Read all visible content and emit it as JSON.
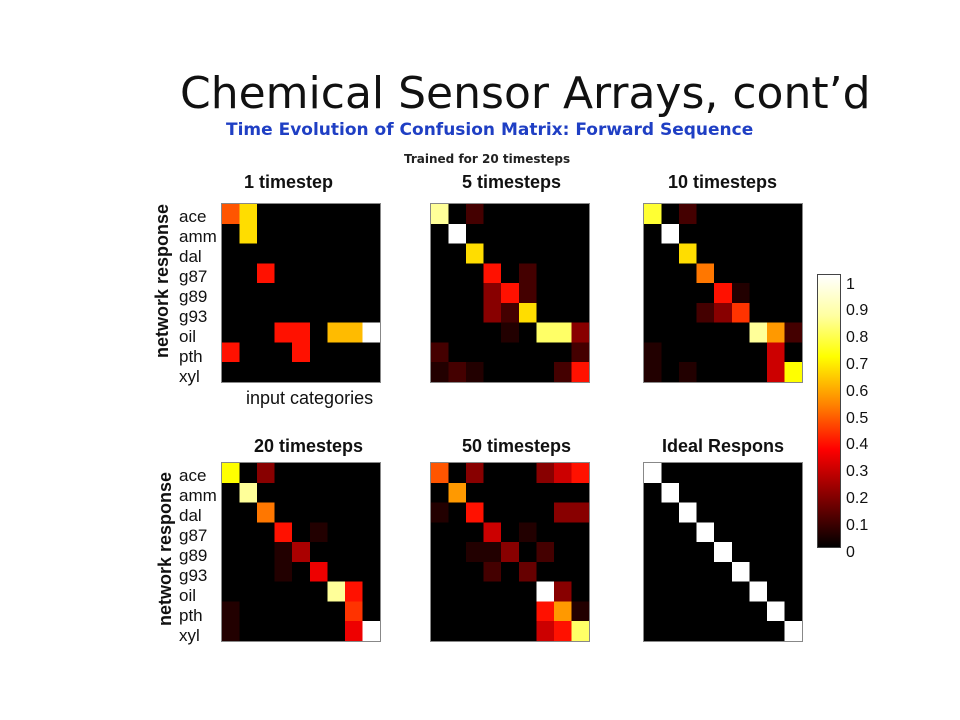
{
  "slide_title": "Chemical Sensor Arrays, cont’d",
  "subtitle": "Time Evolution of Confusion Matrix: Forward Sequence",
  "note": "Trained for 20 timesteps",
  "ylabel": "network response",
  "xlabel": "input categories",
  "chart_data": [
    {
      "type": "heatmap",
      "title": "1 timestep",
      "rows": [
        "ace",
        "amm",
        "dal",
        "g87",
        "g89",
        "g93",
        "oil",
        "pth",
        "xyl"
      ],
      "values": [
        [
          0.5,
          0.7,
          0,
          0,
          0,
          0,
          0,
          0,
          0
        ],
        [
          0,
          0.7,
          0,
          0,
          0,
          0,
          0,
          0,
          0
        ],
        [
          0,
          0,
          0,
          0,
          0,
          0,
          0,
          0,
          0
        ],
        [
          0,
          0,
          0.4,
          0,
          0,
          0,
          0,
          0,
          0
        ],
        [
          0,
          0,
          0,
          0,
          0,
          0,
          0,
          0,
          0
        ],
        [
          0,
          0,
          0,
          0,
          0,
          0,
          0,
          0,
          0
        ],
        [
          0,
          0,
          0,
          0.4,
          0.4,
          0,
          0.65,
          0.65,
          1.0
        ],
        [
          0.4,
          0,
          0,
          0,
          0.4,
          0,
          0,
          0,
          0
        ],
        [
          0,
          0,
          0,
          0,
          0,
          0,
          0,
          0,
          0
        ]
      ]
    },
    {
      "type": "heatmap",
      "title": "5 timesteps",
      "values": [
        [
          0.9,
          0,
          0.1,
          0,
          0,
          0,
          0,
          0,
          0
        ],
        [
          0,
          1.0,
          0,
          0,
          0,
          0,
          0,
          0,
          0
        ],
        [
          0,
          0,
          0.7,
          0,
          0,
          0,
          0,
          0,
          0
        ],
        [
          0,
          0,
          0,
          0.4,
          0,
          0.1,
          0,
          0,
          0
        ],
        [
          0,
          0,
          0,
          0.2,
          0.4,
          0.1,
          0,
          0,
          0
        ],
        [
          0,
          0,
          0,
          0.2,
          0.1,
          0.7,
          0,
          0,
          0
        ],
        [
          0,
          0,
          0,
          0,
          0.05,
          0,
          0.85,
          0.85,
          0.2
        ],
        [
          0.1,
          0,
          0,
          0,
          0,
          0,
          0,
          0,
          0.1
        ],
        [
          0.05,
          0.1,
          0.05,
          0,
          0,
          0,
          0,
          0.1,
          0.4
        ]
      ]
    },
    {
      "type": "heatmap",
      "title": "10 timesteps",
      "values": [
        [
          0.8,
          0,
          0.1,
          0,
          0,
          0,
          0,
          0,
          0
        ],
        [
          0,
          1.0,
          0,
          0,
          0,
          0,
          0,
          0,
          0
        ],
        [
          0,
          0,
          0.7,
          0,
          0,
          0,
          0,
          0,
          0
        ],
        [
          0,
          0,
          0,
          0.55,
          0,
          0,
          0,
          0,
          0
        ],
        [
          0,
          0,
          0,
          0,
          0.4,
          0.05,
          0,
          0,
          0
        ],
        [
          0,
          0,
          0,
          0.1,
          0.2,
          0.45,
          0,
          0,
          0
        ],
        [
          0,
          0,
          0,
          0,
          0,
          0,
          0.9,
          0.6,
          0.1
        ],
        [
          0.05,
          0,
          0,
          0,
          0,
          0,
          0,
          0.3,
          0
        ],
        [
          0.05,
          0,
          0.05,
          0,
          0,
          0,
          0,
          0.3,
          0.75
        ]
      ]
    },
    {
      "type": "heatmap",
      "title": "20 timesteps",
      "values": [
        [
          0.75,
          0,
          0.2,
          0,
          0,
          0,
          0,
          0,
          0
        ],
        [
          0,
          0.9,
          0,
          0,
          0,
          0,
          0,
          0,
          0
        ],
        [
          0,
          0,
          0.55,
          0,
          0,
          0,
          0,
          0,
          0
        ],
        [
          0,
          0,
          0,
          0.4,
          0,
          0.05,
          0,
          0,
          0
        ],
        [
          0,
          0,
          0,
          0.05,
          0.25,
          0,
          0,
          0,
          0
        ],
        [
          0,
          0,
          0,
          0.05,
          0,
          0.35,
          0,
          0,
          0
        ],
        [
          0,
          0,
          0,
          0,
          0,
          0,
          0.9,
          0.4,
          0
        ],
        [
          0.05,
          0,
          0,
          0,
          0,
          0,
          0,
          0.45,
          0
        ],
        [
          0.05,
          0,
          0,
          0,
          0,
          0,
          0,
          0.35,
          1.0
        ]
      ]
    },
    {
      "type": "heatmap",
      "title": "50 timesteps",
      "values": [
        [
          0.5,
          0,
          0.2,
          0,
          0,
          0,
          0.2,
          0.3,
          0.4
        ],
        [
          0,
          0.6,
          0,
          0,
          0,
          0,
          0,
          0,
          0
        ],
        [
          0.05,
          0,
          0.4,
          0,
          0,
          0,
          0,
          0.2,
          0.2
        ],
        [
          0,
          0,
          0,
          0.3,
          0,
          0.05,
          0,
          0,
          0
        ],
        [
          0,
          0,
          0.05,
          0.05,
          0.2,
          0,
          0.1,
          0,
          0
        ],
        [
          0,
          0,
          0,
          0.1,
          0,
          0.15,
          0,
          0,
          0
        ],
        [
          0,
          0,
          0,
          0,
          0,
          0,
          1.0,
          0.2,
          0
        ],
        [
          0,
          0,
          0,
          0,
          0,
          0,
          0.4,
          0.6,
          0.05
        ],
        [
          0,
          0,
          0,
          0,
          0,
          0,
          0.3,
          0.4,
          0.85
        ]
      ]
    },
    {
      "type": "heatmap",
      "title": "Ideal Respons",
      "values": [
        [
          1,
          0,
          0,
          0,
          0,
          0,
          0,
          0,
          0
        ],
        [
          0,
          1,
          0,
          0,
          0,
          0,
          0,
          0,
          0
        ],
        [
          0,
          0,
          1,
          0,
          0,
          0,
          0,
          0,
          0
        ],
        [
          0,
          0,
          0,
          1,
          0,
          0,
          0,
          0,
          0
        ],
        [
          0,
          0,
          0,
          0,
          1,
          0,
          0,
          0,
          0
        ],
        [
          0,
          0,
          0,
          0,
          0,
          1,
          0,
          0,
          0
        ],
        [
          0,
          0,
          0,
          0,
          0,
          0,
          1,
          0,
          0
        ],
        [
          0,
          0,
          0,
          0,
          0,
          0,
          0,
          1,
          0
        ],
        [
          0,
          0,
          0,
          0,
          0,
          0,
          0,
          0,
          1
        ]
      ]
    }
  ],
  "colorbar": {
    "range": [
      0,
      1
    ],
    "colormap": "hot",
    "ticks": [
      "1",
      "0.9",
      "0.8",
      "0.7",
      "0.6",
      "0.5",
      "0.4",
      "0.3",
      "0.2",
      "0.1",
      "0"
    ]
  }
}
